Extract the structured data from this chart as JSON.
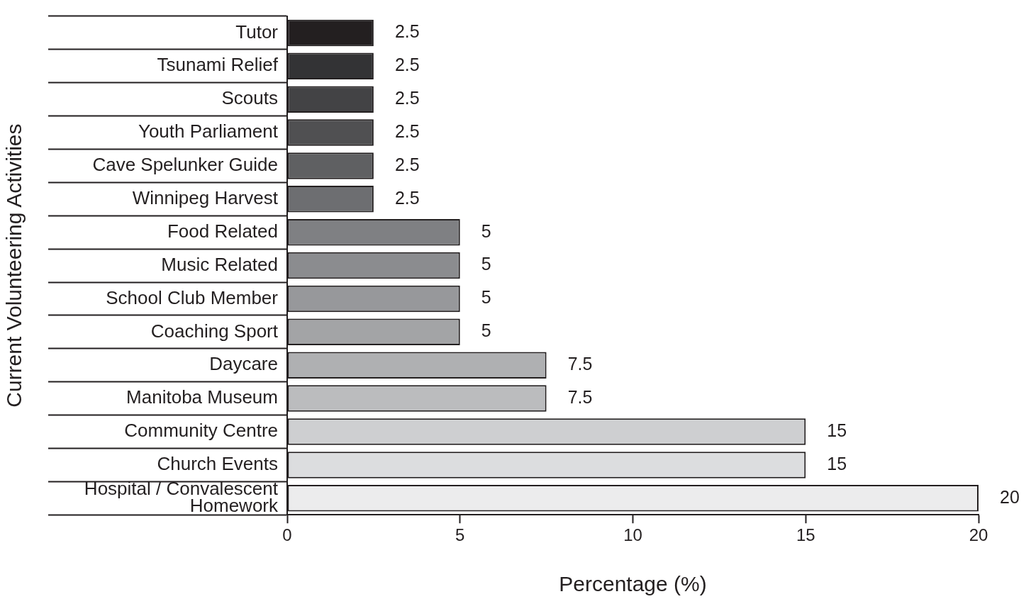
{
  "chart_data": {
    "type": "bar",
    "orientation": "horizontal",
    "xlabel": "Percentage (%)",
    "ylabel": "Current Volunteering Activities",
    "categories": [
      "Tutor",
      "Tsunami Relief",
      "Scouts",
      "Youth Parliament",
      "Cave Spelunker Guide",
      "Winnipeg Harvest",
      "Food Related",
      "Music Related",
      "School Club Member",
      "Coaching Sport",
      "Daycare",
      "Manitoba Museum",
      "Community Centre",
      "Church Events",
      "Hospital / Convalescent Homework"
    ],
    "values": [
      2.5,
      2.5,
      2.5,
      2.5,
      2.5,
      2.5,
      5,
      5,
      5,
      5,
      7.5,
      7.5,
      15,
      15,
      20
    ],
    "colors": [
      "#231f20",
      "#333335",
      "#434345",
      "#505052",
      "#5f6062",
      "#6d6e71",
      "#7f8083",
      "#8b8c8f",
      "#97989b",
      "#a3a4a6",
      "#afb0b2",
      "#bbbcbe",
      "#cecfd1",
      "#dcdddf",
      "#ececed"
    ],
    "xlim": [
      0,
      20
    ],
    "xticks": [
      0,
      5,
      10,
      15,
      20
    ],
    "data_labels": true
  }
}
